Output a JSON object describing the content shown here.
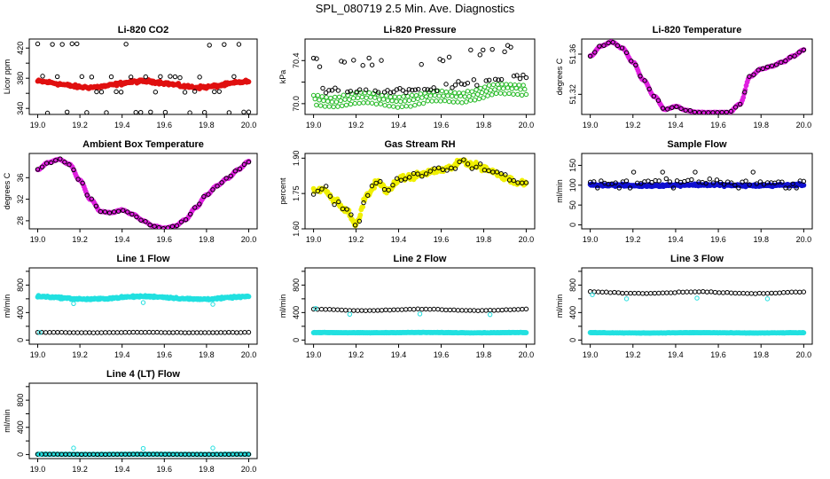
{
  "page": {
    "title": "SPL_080719  2.5 Min. Ave. Diagnostics"
  },
  "chart_data": [
    {
      "type": "scatter",
      "title": "Li-820 CO2",
      "ylabel": "Licor ppm",
      "xlim": [
        19.0,
        20.0
      ],
      "ylim": [
        332,
        432
      ],
      "xticks": [
        "19.0",
        "19.2",
        "19.4",
        "19.6",
        "19.8",
        "20.0"
      ],
      "yticks": [
        340,
        360,
        380,
        400,
        420
      ],
      "ytick_labels": [
        "340",
        "",
        "380",
        "",
        "420"
      ],
      "series": [
        {
          "color": "#e01010",
          "marker": "filled",
          "shape": "flat",
          "level": 372,
          "amp": 4,
          "noise": 3,
          "n": 220
        },
        {
          "color": "#000000",
          "marker": "open",
          "shape": "levels",
          "levels": [
            335,
            362,
            382,
            425
          ],
          "n": 44
        }
      ]
    },
    {
      "type": "scatter",
      "title": "Li-820 Pressure",
      "ylabel": "kPa",
      "xlim": [
        19.0,
        20.0
      ],
      "ylim": [
        69.9,
        70.6
      ],
      "xticks": [
        "19.0",
        "19.2",
        "19.4",
        "19.6",
        "19.8",
        "20.0"
      ],
      "yticks": [
        70.0,
        70.2,
        70.4
      ],
      "ytick_labels": [
        "70.0",
        "",
        "70.4"
      ],
      "series": [
        {
          "color": "#22b822",
          "marker": "open",
          "shape": "pressure",
          "offsets": [
            0.0,
            -0.04,
            -0.09
          ],
          "noise": 0.01,
          "n": 150
        },
        {
          "color": "#000000",
          "marker": "open",
          "shape": "pressure_black",
          "noise": 0.04,
          "n": 70
        }
      ]
    },
    {
      "type": "scatter",
      "title": "Li-820 Temperature",
      "ylabel": "degrees C",
      "xlim": [
        19.0,
        20.0
      ],
      "ylim": [
        51.3,
        51.375
      ],
      "xticks": [
        "19.0",
        "19.2",
        "19.4",
        "19.6",
        "19.8",
        "20.0"
      ],
      "yticks": [
        51.32,
        51.36
      ],
      "ytick_labels": [
        "51.32",
        "51.36"
      ],
      "curve": {
        "x": [
          19.0,
          19.05,
          19.1,
          19.15,
          19.2,
          19.25,
          19.3,
          19.35,
          19.4,
          19.45,
          19.5,
          19.55,
          19.6,
          19.65,
          19.7,
          19.75,
          19.8,
          19.85,
          19.9,
          19.95,
          20.0
        ],
        "y": [
          51.358,
          51.368,
          51.372,
          51.366,
          51.352,
          51.334,
          51.318,
          51.305,
          51.308,
          51.304,
          51.302,
          51.302,
          51.302,
          51.302,
          51.31,
          51.338,
          51.345,
          51.348,
          51.352,
          51.358,
          51.364
        ]
      },
      "series": [
        {
          "color": "#e020e0",
          "marker": "filled",
          "shape": "curve",
          "noise": 0.0005,
          "n": 220
        },
        {
          "color": "#000000",
          "marker": "open",
          "shape": "curve",
          "noise": 0.0008,
          "n": 48
        }
      ]
    },
    {
      "type": "scatter",
      "title": "Ambient Box Temperature",
      "ylabel": "degrees C",
      "xlim": [
        19.0,
        20.0
      ],
      "ylim": [
        26.5,
        40.5
      ],
      "xticks": [
        "19.0",
        "19.2",
        "19.4",
        "19.6",
        "19.8",
        "20.0"
      ],
      "yticks": [
        28,
        32,
        36
      ],
      "ytick_labels": [
        "28",
        "32",
        "36"
      ],
      "curve": {
        "x": [
          19.0,
          19.05,
          19.1,
          19.15,
          19.2,
          19.25,
          19.3,
          19.35,
          19.4,
          19.45,
          19.5,
          19.55,
          19.6,
          19.65,
          19.7,
          19.75,
          19.8,
          19.85,
          19.9,
          19.95,
          20.0
        ],
        "y": [
          37.5,
          38.8,
          39.4,
          38.5,
          35.5,
          32.0,
          29.7,
          29.5,
          30.0,
          29.2,
          28.0,
          27.0,
          26.6,
          27.0,
          28.2,
          30.5,
          32.8,
          34.5,
          35.9,
          37.5,
          39.0
        ]
      },
      "series": [
        {
          "color": "#e020e0",
          "marker": "filled",
          "shape": "curve",
          "noise": 0.1,
          "n": 220
        },
        {
          "color": "#000000",
          "marker": "open",
          "shape": "curve",
          "noise": 0.2,
          "n": 48
        }
      ]
    },
    {
      "type": "scatter",
      "title": "Gas Stream RH",
      "ylabel": "percent",
      "xlim": [
        19.0,
        20.0
      ],
      "ylim": [
        1.6,
        1.92
      ],
      "xticks": [
        "19.0",
        "19.2",
        "19.4",
        "19.6",
        "19.8",
        "20.0"
      ],
      "yticks": [
        1.6,
        1.75,
        1.9
      ],
      "ytick_labels": [
        "1.60",
        "1.75",
        "1.90"
      ],
      "curve": {
        "x": [
          19.0,
          19.05,
          19.1,
          19.15,
          19.2,
          19.25,
          19.3,
          19.35,
          19.4,
          19.45,
          19.5,
          19.55,
          19.6,
          19.65,
          19.7,
          19.75,
          19.8,
          19.85,
          19.9,
          19.95,
          20.0
        ],
        "y": [
          1.76,
          1.77,
          1.72,
          1.68,
          1.62,
          1.74,
          1.8,
          1.76,
          1.81,
          1.82,
          1.83,
          1.84,
          1.85,
          1.86,
          1.89,
          1.87,
          1.86,
          1.84,
          1.82,
          1.8,
          1.79
        ]
      },
      "series": [
        {
          "color": "#f0f000",
          "marker": "filled",
          "shape": "curve",
          "noise": 0.018,
          "n": 260
        },
        {
          "color": "#000000",
          "marker": "open",
          "shape": "curve",
          "noise": 0.02,
          "n": 52
        }
      ]
    },
    {
      "type": "scatter",
      "title": "Sample Flow",
      "ylabel": "ml/min",
      "xlim": [
        19.0,
        20.0
      ],
      "ylim": [
        -10,
        180
      ],
      "xticks": [
        "19.0",
        "19.2",
        "19.4",
        "19.6",
        "19.8",
        "20.0"
      ],
      "yticks": [
        0,
        50,
        100,
        150
      ],
      "ytick_labels": [
        "0",
        "50",
        "100",
        "150"
      ],
      "series": [
        {
          "color": "#1010d0",
          "marker": "filled",
          "shape": "flat",
          "level": 100,
          "amp": 1,
          "noise": 4,
          "n": 240
        },
        {
          "color": "#000000",
          "marker": "open",
          "shape": "flat_sparse",
          "level": 108,
          "amp": 2,
          "noise": 12,
          "n": 60
        }
      ]
    },
    {
      "type": "scatter",
      "title": "Line 1 Flow",
      "ylabel": "ml/min",
      "xlim": [
        19.0,
        20.0
      ],
      "ylim": [
        -60,
        1050
      ],
      "xticks": [
        "19.0",
        "19.2",
        "19.4",
        "19.6",
        "19.8",
        "20.0"
      ],
      "yticks": [
        0,
        200,
        400,
        600,
        800,
        1000
      ],
      "ytick_labels": [
        "0",
        "",
        "400",
        "",
        "800",
        ""
      ],
      "series": [
        {
          "color": "#22e0e0",
          "marker": "filled",
          "shape": "flat",
          "level": 615,
          "amp": 20,
          "noise": 18,
          "n": 260
        },
        {
          "color": "#000000",
          "marker": "open",
          "shape": "flat",
          "level": 110,
          "amp": 2,
          "noise": 3,
          "n": 54
        },
        {
          "color": "#22e0e0",
          "marker": "open",
          "shape": "outliers",
          "points": [
            [
              19.01,
              110
            ],
            [
              19.17,
              530
            ],
            [
              19.5,
              545
            ],
            [
              19.83,
              520
            ]
          ]
        }
      ]
    },
    {
      "type": "scatter",
      "title": "Line 2 Flow",
      "ylabel": "ml/min",
      "xlim": [
        19.0,
        20.0
      ],
      "ylim": [
        -60,
        1050
      ],
      "xticks": [
        "19.0",
        "19.2",
        "19.4",
        "19.6",
        "19.8",
        "20.0"
      ],
      "yticks": [
        0,
        200,
        400,
        600,
        800,
        1000
      ],
      "ytick_labels": [
        "0",
        "",
        "400",
        "",
        "800",
        ""
      ],
      "series": [
        {
          "color": "#22e0e0",
          "marker": "filled",
          "shape": "flat",
          "level": 108,
          "amp": 2,
          "noise": 4,
          "n": 260
        },
        {
          "color": "#000000",
          "marker": "open",
          "shape": "flat",
          "level": 440,
          "amp": 10,
          "noise": 6,
          "n": 54
        },
        {
          "color": "#22e0e0",
          "marker": "open",
          "shape": "outliers",
          "points": [
            [
              19.01,
              460
            ],
            [
              19.17,
              375
            ],
            [
              19.5,
              380
            ],
            [
              19.83,
              370
            ]
          ]
        }
      ]
    },
    {
      "type": "scatter",
      "title": "Line 3 Flow",
      "ylabel": "ml/min",
      "xlim": [
        19.0,
        20.0
      ],
      "ylim": [
        -60,
        1050
      ],
      "xticks": [
        "19.0",
        "19.2",
        "19.4",
        "19.6",
        "19.8",
        "20.0"
      ],
      "yticks": [
        0,
        200,
        400,
        600,
        800,
        1000
      ],
      "ytick_labels": [
        "0",
        "",
        "400",
        "",
        "800",
        ""
      ],
      "series": [
        {
          "color": "#22e0e0",
          "marker": "filled",
          "shape": "flat",
          "level": 105,
          "amp": 2,
          "noise": 4,
          "n": 260
        },
        {
          "color": "#000000",
          "marker": "open",
          "shape": "flat",
          "level": 690,
          "amp": 12,
          "noise": 6,
          "n": 54
        },
        {
          "color": "#22e0e0",
          "marker": "open",
          "shape": "outliers",
          "points": [
            [
              19.01,
              660
            ],
            [
              19.17,
              600
            ],
            [
              19.5,
              610
            ],
            [
              19.83,
              600
            ]
          ]
        }
      ]
    },
    {
      "type": "scatter",
      "title": "Line 4 (LT) Flow",
      "ylabel": "ml/min",
      "xlim": [
        19.0,
        20.0
      ],
      "ylim": [
        -60,
        1050
      ],
      "xticks": [
        "19.0",
        "19.2",
        "19.4",
        "19.6",
        "19.8",
        "20.0"
      ],
      "yticks": [
        0,
        200,
        400,
        600,
        800,
        1000
      ],
      "ytick_labels": [
        "0",
        "",
        "400",
        "",
        "800",
        ""
      ],
      "series": [
        {
          "color": "#22e0e0",
          "marker": "filled",
          "shape": "flat",
          "level": 3,
          "amp": 1,
          "noise": 2,
          "n": 260
        },
        {
          "color": "#000000",
          "marker": "open",
          "shape": "flat",
          "level": 3,
          "amp": 1,
          "noise": 2,
          "n": 54
        },
        {
          "color": "#22e0e0",
          "marker": "open",
          "shape": "outliers",
          "points": [
            [
              19.01,
              3
            ],
            [
              19.17,
              95
            ],
            [
              19.5,
              90
            ],
            [
              19.83,
              95
            ]
          ]
        }
      ]
    }
  ]
}
